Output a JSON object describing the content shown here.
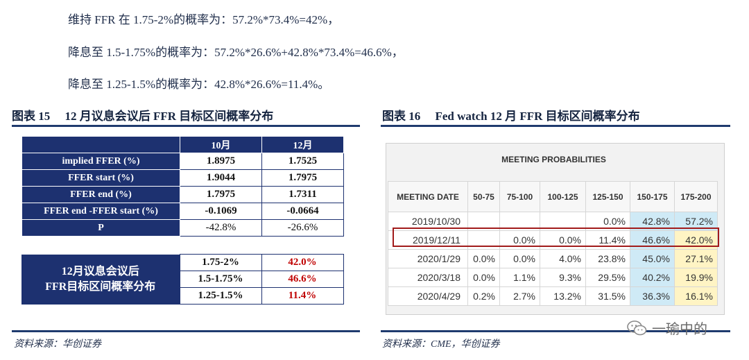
{
  "text_lines": [
    "维持 FFR 在 1.75-2%的概率为：57.2%*73.4%=42%，",
    "降息至 1.5-1.75%的概率为：57.2%*26.6%+42.8%*73.4%=46.6%，",
    "降息至 1.25-1.5%的概率为：42.8%*26.6%=11.4%。"
  ],
  "figure15": {
    "title": "图表 15　 12 月议息会议后 FFR 目标区间概率分布",
    "col_headers": [
      "10月",
      "12月"
    ],
    "rows": [
      {
        "label": "implied FFER (%)",
        "v1": "1.8975",
        "v2": "1.7525"
      },
      {
        "label": "FFER start (%)",
        "v1": "1.9044",
        "v2": "1.7975"
      },
      {
        "label": "FFER end (%)",
        "v1": "1.7975",
        "v2": "1.7311"
      },
      {
        "label": "FFER end -FFER start (%)",
        "v1": "-0.1069",
        "v2": "-0.0664"
      },
      {
        "label": "P",
        "v1": "-42.8%",
        "v2": "-26.6%"
      }
    ],
    "dist_label_line1": "12月议息会议后",
    "dist_label_line2": "FFR目标区间概率分布",
    "dist_rows": [
      {
        "range": "1.75-2%",
        "prob": "42.0%"
      },
      {
        "range": "1.5-1.75%",
        "prob": "46.6%"
      },
      {
        "range": "1.25-1.5%",
        "prob": "11.4%"
      }
    ],
    "source": "资料来源：华创证券"
  },
  "figure16": {
    "title": "图表 16　 Fed watch 12 月 FFR 目标区间概率分布",
    "panel_title": "MEETING PROBABILITIES",
    "headers": [
      "MEETING DATE",
      "50-75",
      "75-100",
      "100-125",
      "125-150",
      "150-175",
      "175-200"
    ],
    "rows": [
      [
        "2019/10/30",
        "",
        "",
        "",
        "0.0%",
        "42.8%",
        "57.2%"
      ],
      [
        "2019/12/11",
        "",
        "0.0%",
        "0.0%",
        "11.4%",
        "46.6%",
        "42.0%"
      ],
      [
        "2020/1/29",
        "0.0%",
        "0.0%",
        "4.0%",
        "23.8%",
        "45.0%",
        "27.1%"
      ],
      [
        "2020/3/18",
        "0.0%",
        "1.1%",
        "9.3%",
        "29.5%",
        "40.2%",
        "19.9%"
      ],
      [
        "2020/4/29",
        "0.2%",
        "2.7%",
        "13.2%",
        "31.5%",
        "36.3%",
        "16.1%"
      ]
    ],
    "highlighted_row": "2019/12/11",
    "source": "资料来源：CME，华创证券"
  },
  "watermark": "一瑜中的",
  "colors": {
    "navy": "#1d3170",
    "red": "#c00000",
    "cell_blue": "#cfeaf6",
    "cell_yellow": "#fff4c4",
    "highlight_border": "#a11a1a"
  }
}
